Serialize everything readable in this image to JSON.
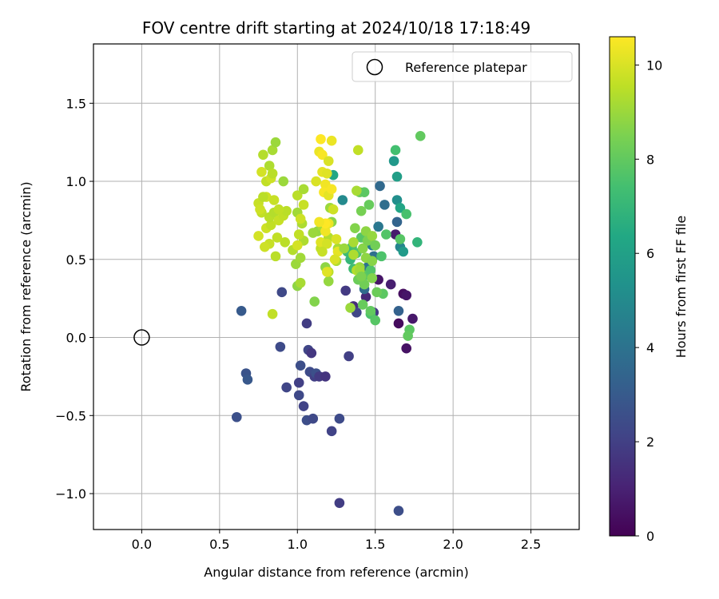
{
  "chart_data": {
    "type": "scatter",
    "title": "FOV centre drift starting at 2024/10/18 17:18:49",
    "xlabel": "Angular distance from reference (arcmin)",
    "ylabel": "Rotation from reference (arcmin)",
    "xlim": [
      -0.31,
      2.81
    ],
    "ylim": [
      -1.23,
      1.88
    ],
    "xticks": [
      0.0,
      0.5,
      1.0,
      1.5,
      2.0,
      2.5
    ],
    "xtick_labels": [
      "0.0",
      "0.5",
      "1.0",
      "1.5",
      "2.0",
      "2.5"
    ],
    "yticks": [
      -1.0,
      -0.5,
      0.0,
      0.5,
      1.0,
      1.5
    ],
    "ytick_labels": [
      "−1.0",
      "−0.5",
      "0.0",
      "0.5",
      "1.0",
      "1.5"
    ],
    "grid": true,
    "legend": {
      "position": "top-right",
      "entries": [
        {
          "label": "Reference platepar",
          "marker": "open-circle"
        }
      ]
    },
    "reference_point": {
      "x": 0.0,
      "y": 0.0
    },
    "colorbar": {
      "label": "Hours from first FF file",
      "colormap": "viridis",
      "range": [
        0,
        10.6
      ],
      "ticks": [
        0,
        2,
        4,
        6,
        8,
        10
      ],
      "tick_labels": [
        "0",
        "2",
        "4",
        "6",
        "8",
        "10"
      ]
    },
    "points": [
      [
        0.61,
        -0.51,
        2.6
      ],
      [
        0.64,
        0.17,
        3.0
      ],
      [
        0.67,
        -0.23,
        2.7
      ],
      [
        0.68,
        -0.27,
        2.9
      ],
      [
        0.89,
        -0.06,
        2.4
      ],
      [
        0.9,
        0.29,
        2.3
      ],
      [
        0.93,
        -0.32,
        2.2
      ],
      [
        1.01,
        -0.29,
        2.0
      ],
      [
        1.01,
        -0.37,
        2.3
      ],
      [
        1.02,
        -0.18,
        2.5
      ],
      [
        1.04,
        -0.44,
        2.1
      ],
      [
        1.06,
        0.09,
        1.9
      ],
      [
        1.06,
        -0.53,
        2.5
      ],
      [
        1.07,
        -0.08,
        2.2
      ],
      [
        1.08,
        -0.22,
        2.4
      ],
      [
        1.09,
        -0.1,
        1.7
      ],
      [
        1.1,
        -0.52,
        2.3
      ],
      [
        1.11,
        -0.25,
        2.0
      ],
      [
        1.12,
        -0.23,
        2.6
      ],
      [
        1.14,
        -0.25,
        1.8
      ],
      [
        1.18,
        -0.25,
        1.6
      ],
      [
        1.22,
        -0.6,
        2.1
      ],
      [
        1.27,
        -0.52,
        2.4
      ],
      [
        1.27,
        -1.06,
        1.9
      ],
      [
        1.31,
        0.3,
        1.8
      ],
      [
        1.33,
        -0.12,
        2.0
      ],
      [
        1.65,
        -1.11,
        2.5
      ],
      [
        1.36,
        0.2,
        1.4
      ],
      [
        1.38,
        0.16,
        2.2
      ],
      [
        1.44,
        0.26,
        1.2
      ],
      [
        1.49,
        0.16,
        1.8
      ],
      [
        1.52,
        0.37,
        0.6
      ],
      [
        1.6,
        0.34,
        0.9
      ],
      [
        1.63,
        0.66,
        0.8
      ],
      [
        1.65,
        0.09,
        0.3
      ],
      [
        1.68,
        0.28,
        0.4
      ],
      [
        1.7,
        -0.07,
        0.5
      ],
      [
        1.7,
        0.27,
        0.6
      ],
      [
        1.74,
        0.12,
        0.7
      ],
      [
        1.65,
        0.17,
        3.3
      ],
      [
        1.53,
        0.97,
        3.6
      ],
      [
        1.56,
        0.85,
        3.8
      ],
      [
        1.62,
        1.13,
        5.6
      ],
      [
        1.64,
        0.74,
        3.4
      ],
      [
        1.64,
        0.88,
        5.2
      ],
      [
        1.64,
        1.03,
        5.9
      ],
      [
        1.66,
        0.83,
        6.2
      ],
      [
        1.66,
        0.58,
        4.8
      ],
      [
        1.68,
        0.55,
        5.7
      ],
      [
        1.52,
        0.71,
        4.2
      ],
      [
        1.48,
        0.59,
        4.5
      ],
      [
        1.29,
        0.88,
        5.0
      ],
      [
        1.23,
        1.04,
        6.3
      ],
      [
        1.77,
        0.61,
        6.9
      ],
      [
        1.45,
        0.45,
        4.0
      ],
      [
        1.49,
        0.52,
        3.9
      ],
      [
        1.43,
        0.31,
        3.7
      ],
      [
        1.63,
        1.2,
        7.4
      ],
      [
        1.79,
        1.29,
        8.0
      ],
      [
        1.7,
        0.79,
        7.5
      ],
      [
        1.66,
        0.63,
        7.8
      ],
      [
        1.57,
        0.66,
        7.7
      ],
      [
        1.54,
        0.52,
        7.6
      ],
      [
        1.55,
        0.28,
        7.9
      ],
      [
        1.72,
        0.05,
        7.9
      ],
      [
        1.71,
        0.01,
        8.0
      ],
      [
        1.47,
        0.15,
        7.6
      ],
      [
        1.5,
        0.11,
        7.8
      ],
      [
        1.42,
        0.21,
        8.1
      ],
      [
        1.45,
        0.4,
        7.9
      ],
      [
        1.4,
        0.93,
        8.2
      ],
      [
        1.43,
        0.93,
        7.9
      ],
      [
        1.41,
        0.81,
        8.4
      ],
      [
        1.46,
        0.85,
        8.1
      ],
      [
        1.37,
        0.7,
        8.6
      ],
      [
        1.41,
        0.64,
        7.8
      ],
      [
        1.38,
        0.54,
        7.7
      ],
      [
        1.35,
        0.58,
        7.5
      ],
      [
        1.32,
        0.55,
        7.2
      ],
      [
        1.34,
        0.5,
        7.0
      ],
      [
        1.36,
        0.44,
        7.3
      ],
      [
        1.39,
        0.37,
        8.2
      ],
      [
        1.43,
        0.34,
        8.3
      ],
      [
        1.47,
        0.43,
        7.7
      ],
      [
        1.44,
        0.68,
        8.8
      ],
      [
        1.42,
        0.57,
        8.7
      ],
      [
        1.45,
        0.62,
        8.5
      ],
      [
        1.48,
        0.65,
        8.9
      ],
      [
        1.5,
        0.59,
        8.3
      ],
      [
        1.4,
        0.45,
        8.9
      ],
      [
        1.34,
        0.19,
        9.0
      ],
      [
        1.18,
        0.45,
        8.8
      ],
      [
        1.13,
        0.68,
        8.9
      ],
      [
        1.16,
        0.71,
        9.2
      ],
      [
        1.2,
        0.64,
        9.4
      ],
      [
        1.22,
        0.74,
        8.7
      ],
      [
        1.26,
        0.57,
        9.2
      ],
      [
        1.25,
        0.49,
        9.3
      ],
      [
        1.2,
        0.36,
        8.9
      ],
      [
        1.2,
        0.42,
        9.5
      ],
      [
        1.15,
        0.57,
        9.6
      ],
      [
        1.21,
        0.83,
        9.0
      ],
      [
        1.11,
        0.23,
        8.6
      ],
      [
        1.0,
        0.33,
        8.8
      ],
      [
        0.99,
        0.47,
        9.0
      ],
      [
        1.02,
        0.51,
        9.1
      ],
      [
        1.02,
        0.35,
        9.2
      ],
      [
        1.04,
        0.62,
        9.3
      ],
      [
        0.97,
        0.56,
        9.4
      ],
      [
        0.92,
        0.61,
        9.5
      ],
      [
        0.87,
        0.64,
        9.6
      ],
      [
        0.82,
        0.6,
        9.7
      ],
      [
        0.79,
        0.58,
        9.8
      ],
      [
        0.75,
        0.65,
        9.9
      ],
      [
        0.8,
        0.7,
        9.8
      ],
      [
        0.83,
        0.72,
        9.6
      ],
      [
        0.86,
        0.52,
        9.5
      ],
      [
        0.84,
        0.15,
        9.6
      ],
      [
        0.75,
        0.86,
        9.7
      ],
      [
        0.77,
        0.8,
        9.6
      ],
      [
        0.8,
        0.9,
        9.8
      ],
      [
        0.82,
        0.77,
        9.5
      ],
      [
        0.85,
        0.8,
        9.4
      ],
      [
        0.88,
        0.75,
        9.7
      ],
      [
        0.91,
        0.78,
        9.6
      ],
      [
        0.93,
        0.81,
        9.5
      ],
      [
        0.91,
        1.0,
        9.0
      ],
      [
        0.82,
        1.1,
        9.3
      ],
      [
        0.84,
        1.2,
        9.2
      ],
      [
        0.86,
        1.25,
        9.0
      ],
      [
        0.78,
        1.17,
        9.4
      ],
      [
        0.77,
        1.06,
        9.9
      ],
      [
        0.8,
        1.0,
        9.6
      ],
      [
        0.83,
        1.02,
        9.8
      ],
      [
        0.84,
        1.05,
        9.5
      ],
      [
        0.76,
        0.82,
        9.8
      ],
      [
        0.78,
        0.9,
        9.5
      ],
      [
        0.85,
        0.88,
        9.7
      ],
      [
        0.88,
        0.82,
        9.6
      ],
      [
        1.0,
        0.91,
        9.5
      ],
      [
        1.04,
        0.95,
        9.2
      ],
      [
        1.0,
        0.8,
        9.1
      ],
      [
        1.03,
        0.73,
        9.3
      ],
      [
        1.04,
        0.85,
        9.7
      ],
      [
        1.01,
        0.66,
        9.6
      ],
      [
        1.0,
        0.59,
        9.9
      ],
      [
        1.02,
        0.76,
        9.8
      ],
      [
        1.1,
        0.67,
        9.0
      ],
      [
        1.12,
        1.0,
        10.0
      ],
      [
        1.14,
        1.19,
        10.3
      ],
      [
        1.16,
        1.06,
        10.2
      ],
      [
        1.16,
        1.17,
        10.5
      ],
      [
        1.18,
        0.98,
        10.4
      ],
      [
        1.19,
        1.05,
        10.1
      ],
      [
        1.2,
        1.13,
        10.0
      ],
      [
        1.22,
        1.26,
        10.3
      ],
      [
        1.15,
        1.27,
        10.6
      ],
      [
        1.17,
        0.93,
        10.5
      ],
      [
        1.2,
        0.91,
        10.2
      ],
      [
        1.18,
        0.68,
        10.4
      ],
      [
        1.15,
        0.61,
        10.1
      ],
      [
        1.2,
        0.73,
        10.3
      ],
      [
        1.22,
        0.95,
        10.5
      ],
      [
        1.23,
        0.82,
        9.8
      ],
      [
        1.25,
        0.63,
        10.0
      ],
      [
        1.26,
        0.55,
        10.2
      ],
      [
        1.24,
        0.5,
        10.0
      ],
      [
        1.19,
        0.6,
        9.9
      ],
      [
        1.18,
        0.73,
        10.6
      ],
      [
        1.14,
        0.74,
        10.4
      ],
      [
        1.16,
        0.55,
        9.7
      ],
      [
        1.19,
        0.42,
        10.1
      ],
      [
        1.39,
        1.2,
        9.6
      ],
      [
        1.38,
        0.94,
        9.2
      ],
      [
        1.3,
        0.57,
        9.0
      ],
      [
        1.36,
        0.53,
        9.3
      ],
      [
        1.38,
        0.43,
        9.4
      ],
      [
        1.48,
        0.38,
        8.6
      ],
      [
        1.51,
        0.29,
        8.2
      ],
      [
        1.47,
        0.17,
        8.0
      ],
      [
        1.4,
        0.43,
        9.1
      ],
      [
        1.36,
        0.61,
        9.2
      ],
      [
        1.44,
        0.51,
        8.8
      ],
      [
        1.48,
        0.49,
        8.7
      ],
      [
        1.41,
        0.39,
        8.5
      ]
    ]
  }
}
